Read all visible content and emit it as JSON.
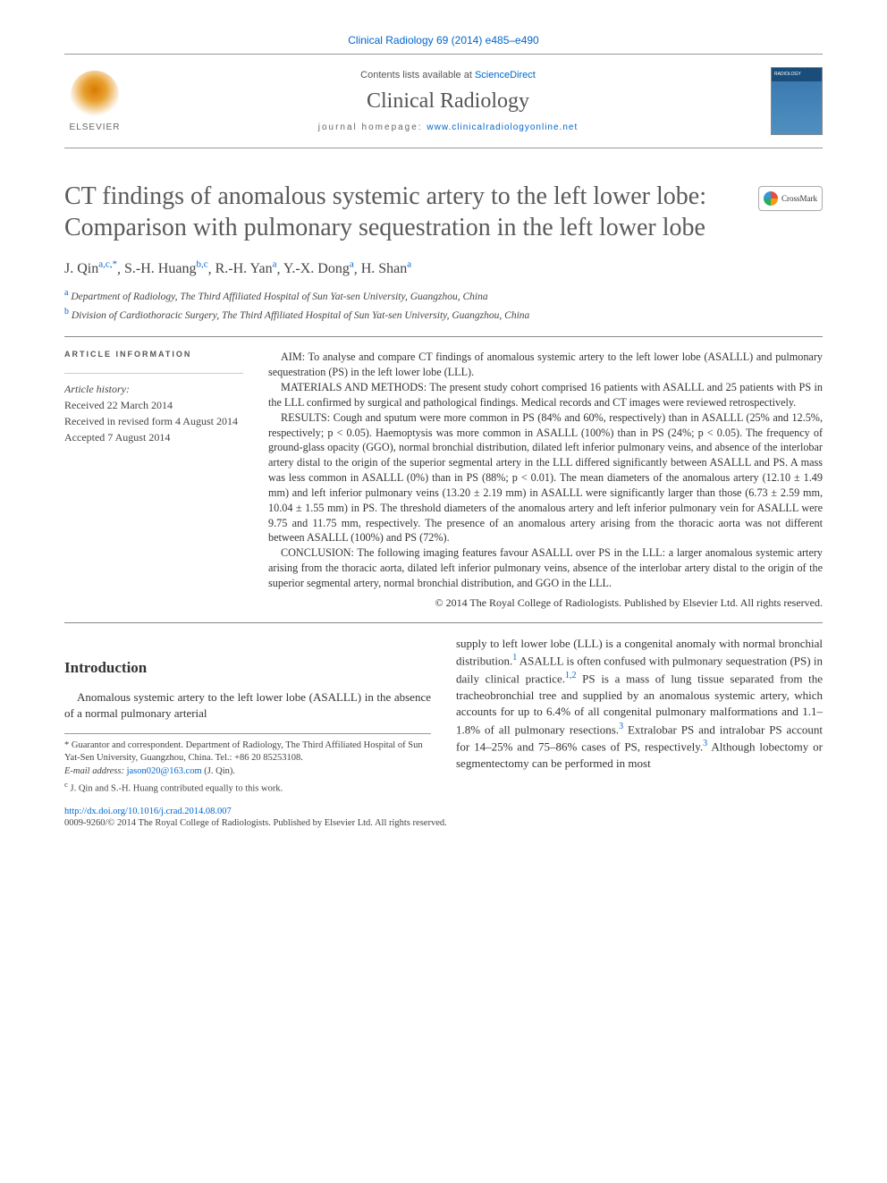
{
  "topbar": "Clinical Radiology 69 (2014) e485–e490",
  "contents_prefix": "Contents lists available at ",
  "contents_link": "ScienceDirect",
  "journal_name": "Clinical Radiology",
  "homepage_prefix": "journal homepage: ",
  "homepage_link": "www.clinicalradiologyonline.net",
  "elsevier": "ELSEVIER",
  "crossmark": "CrossMark",
  "title": "CT findings of anomalous systemic artery to the left lower lobe: Comparison with pulmonary sequestration in the left lower lobe",
  "authors": [
    {
      "name": "J. Qin",
      "aff": "a,c,",
      "star": "*"
    },
    {
      "name": "S.-H. Huang",
      "aff": "b,c"
    },
    {
      "name": "R.-H. Yan",
      "aff": "a"
    },
    {
      "name": "Y.-X. Dong",
      "aff": "a"
    },
    {
      "name": "H. Shan",
      "aff": "a"
    }
  ],
  "aff_a": {
    "sup": "a",
    "text": "Department of Radiology, The Third Affiliated Hospital of Sun Yat-sen University, Guangzhou, China"
  },
  "aff_b": {
    "sup": "b",
    "text": "Division of Cardiothoracic Surgery, The Third Affiliated Hospital of Sun Yat-sen University, Guangzhou, China"
  },
  "artinfo_head": "ARTICLE INFORMATION",
  "history_label": "Article history:",
  "history": {
    "received": "Received 22 March 2014",
    "revised": "Received in revised form 4 August 2014",
    "accepted": "Accepted 7 August 2014"
  },
  "abstract": {
    "aim": "AIM: To analyse and compare CT findings of anomalous systemic artery to the left lower lobe (ASALLL) and pulmonary sequestration (PS) in the left lower lobe (LLL).",
    "methods": "MATERIALS AND METHODS: The present study cohort comprised 16 patients with ASALLL and 25 patients with PS in the LLL confirmed by surgical and pathological findings. Medical records and CT images were reviewed retrospectively.",
    "results": "RESULTS: Cough and sputum were more common in PS (84% and 60%, respectively) than in ASALLL (25% and 12.5%, respectively; p < 0.05). Haemoptysis was more common in ASALLL (100%) than in PS (24%; p < 0.05). The frequency of ground-glass opacity (GGO), normal bronchial distribution, dilated left inferior pulmonary veins, and absence of the interlobar artery distal to the origin of the superior segmental artery in the LLL differed significantly between ASALLL and PS. A mass was less common in ASALLL (0%) than in PS (88%; p < 0.01). The mean diameters of the anomalous artery (12.10 ± 1.49 mm) and left inferior pulmonary veins (13.20 ± 2.19 mm) in ASALLL were significantly larger than those (6.73 ± 2.59 mm, 10.04 ± 1.55 mm) in PS. The threshold diameters of the anomalous artery and left inferior pulmonary vein for ASALLL were 9.75 and 11.75 mm, respectively. The presence of an anomalous artery arising from the thoracic aorta was not different between ASALLL (100%) and PS (72%).",
    "conclusion": "CONCLUSION: The following imaging features favour ASALLL over PS in the LLL: a larger anomalous systemic artery arising from the thoracic aorta, dilated left inferior pulmonary veins, absence of the interlobar artery distal to the origin of the superior segmental artery, normal bronchial distribution, and GGO in the LLL.",
    "copyright": "© 2014 The Royal College of Radiologists. Published by Elsevier Ltd. All rights reserved."
  },
  "intro_head": "Introduction",
  "intro_p1": "Anomalous systemic artery to the left lower lobe (ASALLL) in the absence of a normal pulmonary arterial",
  "intro_p2a": "supply to left lower lobe (LLL) is a congenital anomaly with normal bronchial distribution.",
  "intro_p2b": " ASALLL is often confused with pulmonary sequestration (PS) in daily clinical practice.",
  "intro_p2c": " PS is a mass of lung tissue separated from the tracheobronchial tree and supplied by an anomalous systemic artery, which accounts for up to 6.4% of all congenital pulmonary malformations and 1.1–1.8% of all pulmonary resections.",
  "intro_p2d": " Extralobar PS and intralobar PS account for 14–25% and 75–86% cases of PS, respectively.",
  "intro_p2e": " Although lobectomy or segmentectomy can be performed in most",
  "ref1": "1",
  "ref12": "1,2",
  "ref3": "3",
  "fn_star": "* Guarantor and correspondent. Department of Radiology, The Third Affiliated Hospital of Sun Yat-Sen University, Guangzhou, China. Tel.: +86 20 85253108.",
  "fn_email_label": "E-mail address: ",
  "fn_email": "jason020@163.com",
  "fn_email_suffix": " (J. Qin).",
  "fn_c": "J. Qin and S.-H. Huang contributed equally to this work.",
  "fn_c_sup": "c",
  "doi": "http://dx.doi.org/10.1016/j.crad.2014.08.007",
  "issn": "0009-9260/© 2014 The Royal College of Radiologists. Published by Elsevier Ltd. All rights reserved."
}
